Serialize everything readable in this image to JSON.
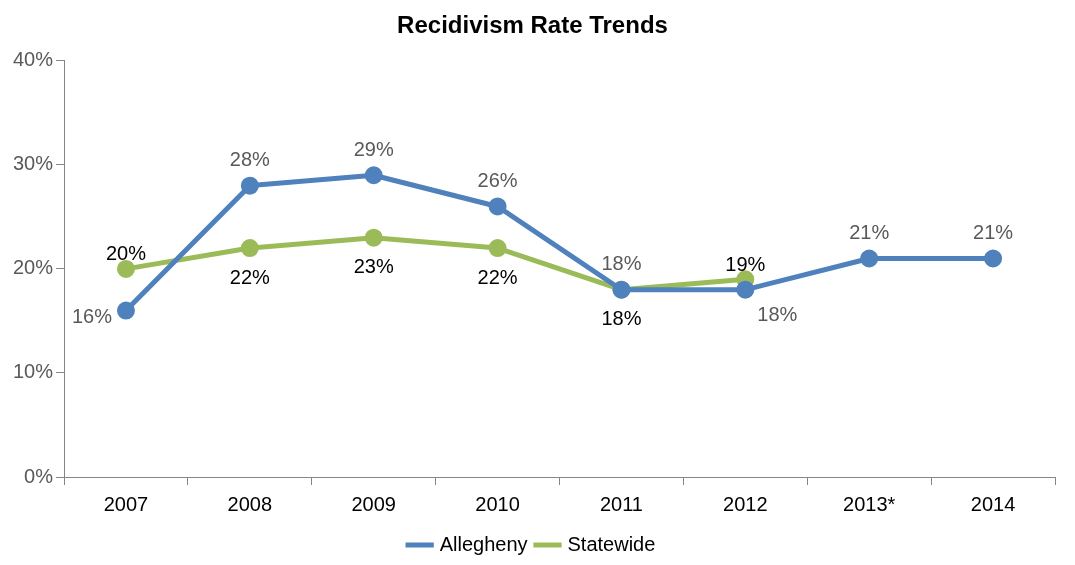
{
  "chart_data": {
    "type": "line",
    "title": "Recidivism Rate Trends",
    "categories": [
      "2007",
      "2008",
      "2009",
      "2010",
      "2011",
      "2012",
      "2013*",
      "2014"
    ],
    "series": [
      {
        "name": "Allegheny",
        "color": "#4f81bd",
        "values": [
          16,
          28,
          29,
          26,
          18,
          18,
          21,
          21
        ],
        "value_labels": [
          "16%",
          "28%",
          "29%",
          "26%",
          "18%",
          "18%",
          "21%",
          "21%"
        ]
      },
      {
        "name": "Statewide",
        "color": "#9bbb59",
        "values": [
          20,
          22,
          23,
          22,
          18,
          19,
          null,
          null
        ],
        "value_labels": [
          "20%",
          "22%",
          "23%",
          "22%",
          "18%",
          "19%",
          null,
          null
        ]
      }
    ],
    "ylim": [
      0,
      40
    ],
    "yticks": [
      {
        "value": 0,
        "label": "0%"
      },
      {
        "value": 10,
        "label": "10%"
      },
      {
        "value": 20,
        "label": "20%"
      },
      {
        "value": 30,
        "label": "30%"
      },
      {
        "value": 40,
        "label": "40%"
      }
    ],
    "grid": false,
    "legend": "bottom",
    "marker": "circle",
    "line_style": "solid"
  }
}
